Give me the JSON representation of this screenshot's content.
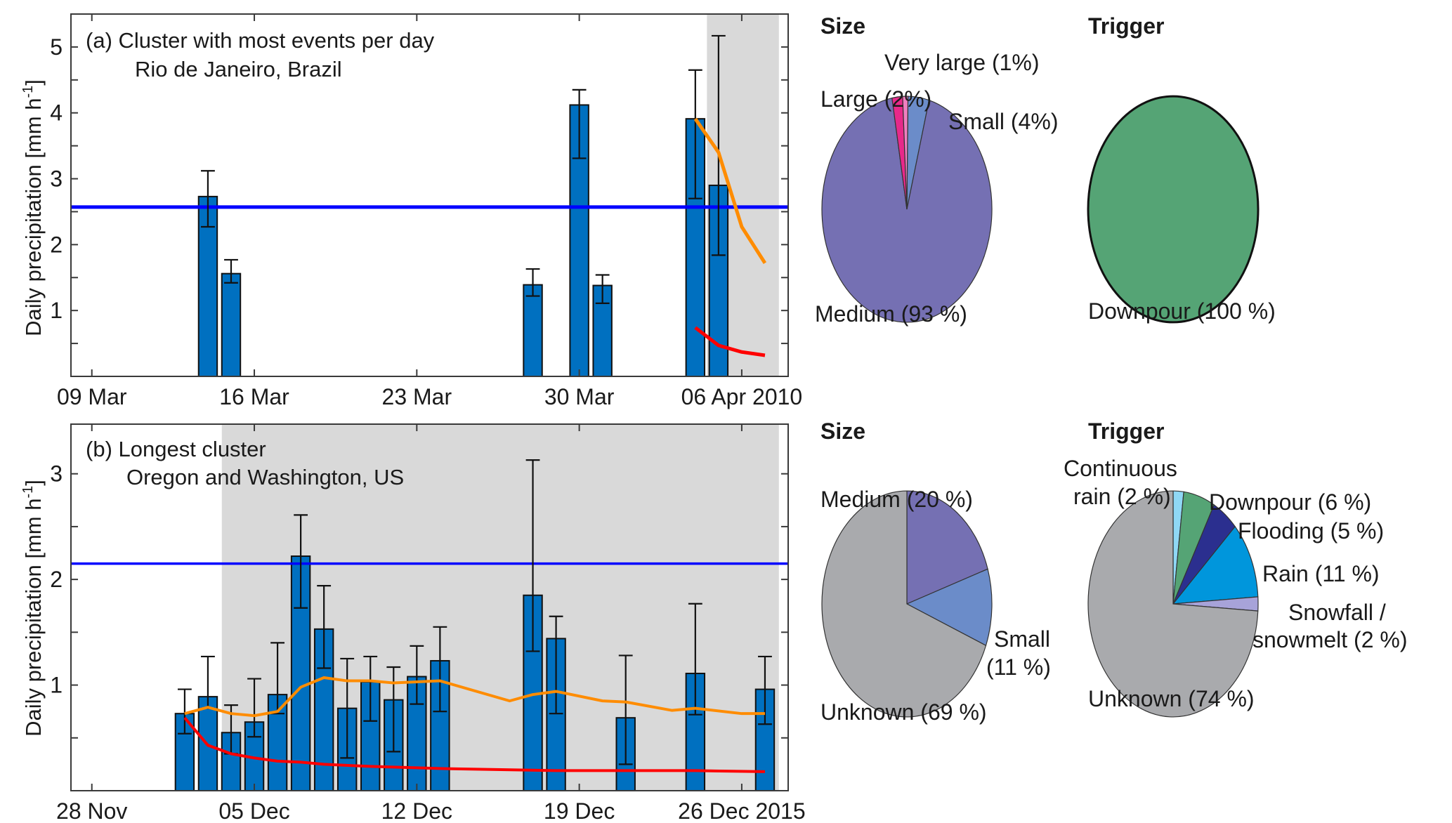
{
  "figure": {
    "ylabel": "Daily precipitation [mm h",
    "ylabel_sup": "-1",
    "ylabel_close": "]"
  },
  "chart_data": [
    {
      "type": "bar",
      "id": "panel-a",
      "title_line1": "(a) Cluster with most events per day",
      "title_line2": "Rio de Janeiro, Brazil",
      "ylabel": "Daily precipitation [mm h-1]",
      "ylim": [
        0,
        5.5
      ],
      "yticks_major": [
        1,
        2,
        3,
        4,
        5
      ],
      "yticks_minor_step": 0.5,
      "xlim_days": [
        -0.9,
        30.0
      ],
      "x_origin_date": "09 Mar 2010",
      "xticks": [
        {
          "day": 0,
          "label": "09 Mar"
        },
        {
          "day": 7,
          "label": "16 Mar"
        },
        {
          "day": 14,
          "label": "23 Mar"
        },
        {
          "day": 21,
          "label": "30 Mar"
        },
        {
          "day": 28,
          "label": "06 Apr 2010"
        }
      ],
      "shaded_range_days": [
        26.5,
        29.6
      ],
      "threshold": 2.57,
      "bars": [
        {
          "day": 5,
          "date": "14 Mar",
          "value": 2.73,
          "err_low": 2.27,
          "err_high": 3.12
        },
        {
          "day": 6,
          "date": "15 Mar",
          "value": 1.56,
          "err_low": 1.42,
          "err_high": 1.77
        },
        {
          "day": 19,
          "date": "28 Mar",
          "value": 1.39,
          "err_low": 1.22,
          "err_high": 1.63
        },
        {
          "day": 21,
          "date": "30 Mar",
          "value": 4.12,
          "err_low": 3.31,
          "err_high": 4.35
        },
        {
          "day": 22,
          "date": "31 Mar",
          "value": 1.38,
          "err_low": 1.11,
          "err_high": 1.54
        },
        {
          "day": 26,
          "date": "04 Apr",
          "value": 3.91,
          "err_low": 2.7,
          "err_high": 4.65
        },
        {
          "day": 27,
          "date": "05 Apr",
          "value": 2.9,
          "err_low": 1.84,
          "err_high": 5.17
        }
      ],
      "series": [
        {
          "name": "orange-curve",
          "color": "#ff8c00",
          "points": [
            [
              26,
              3.91
            ],
            [
              27,
              3.4
            ],
            [
              28,
              2.27
            ],
            [
              29,
              1.72
            ]
          ]
        },
        {
          "name": "red-curve",
          "color": "#ff0000",
          "points": [
            [
              26,
              0.74
            ],
            [
              27,
              0.47
            ],
            [
              28,
              0.37
            ],
            [
              29,
              0.32
            ]
          ]
        }
      ]
    },
    {
      "type": "bar",
      "id": "panel-b",
      "title_line1": "(b) Longest cluster",
      "title_line2": "Oregon and Washington, US",
      "ylabel": "Daily precipitation [mm h-1]",
      "ylim": [
        0,
        3.47
      ],
      "yticks_major": [
        1,
        2,
        3
      ],
      "yticks_minor_step": 0.5,
      "xlim_days": [
        -0.9,
        30.0
      ],
      "x_origin_date": "28 Nov 2015",
      "xticks": [
        {
          "day": 0,
          "label": "28 Nov"
        },
        {
          "day": 7,
          "label": "05 Dec"
        },
        {
          "day": 14,
          "label": "12 Dec"
        },
        {
          "day": 21,
          "label": "19 Dec"
        },
        {
          "day": 28,
          "label": "26 Dec 2015"
        }
      ],
      "shaded_range_days": [
        5.6,
        29.6
      ],
      "threshold": 2.15,
      "bars": [
        {
          "day": 4,
          "date": "02 Dec",
          "value": 0.73,
          "err_low": 0.54,
          "err_high": 0.96
        },
        {
          "day": 5,
          "date": "03 Dec",
          "value": 0.89,
          "err_low": 0.78,
          "err_high": 1.27
        },
        {
          "day": 6,
          "date": "04 Dec",
          "value": 0.55,
          "err_low": 0.35,
          "err_high": 0.81
        },
        {
          "day": 7,
          "date": "05 Dec",
          "value": 0.65,
          "err_low": 0.51,
          "err_high": 1.06
        },
        {
          "day": 8,
          "date": "06 Dec",
          "value": 0.91,
          "err_low": 0.73,
          "err_high": 1.4
        },
        {
          "day": 9,
          "date": "07 Dec",
          "value": 2.22,
          "err_low": 1.73,
          "err_high": 2.61
        },
        {
          "day": 10,
          "date": "08 Dec",
          "value": 1.53,
          "err_low": 1.16,
          "err_high": 1.94
        },
        {
          "day": 11,
          "date": "09 Dec",
          "value": 0.78,
          "err_low": 0.31,
          "err_high": 1.25
        },
        {
          "day": 12,
          "date": "10 Dec",
          "value": 1.03,
          "err_low": 0.66,
          "err_high": 1.27
        },
        {
          "day": 13,
          "date": "11 Dec",
          "value": 0.86,
          "err_low": 0.37,
          "err_high": 1.17
        },
        {
          "day": 14,
          "date": "12 Dec",
          "value": 1.08,
          "err_low": 0.82,
          "err_high": 1.37
        },
        {
          "day": 15,
          "date": "13 Dec",
          "value": 1.23,
          "err_low": 0.75,
          "err_high": 1.55
        },
        {
          "day": 19,
          "date": "17 Dec",
          "value": 1.85,
          "err_low": 1.32,
          "err_high": 3.13
        },
        {
          "day": 20,
          "date": "18 Dec",
          "value": 1.44,
          "err_low": 0.73,
          "err_high": 1.65
        },
        {
          "day": 23,
          "date": "21 Dec",
          "value": 0.69,
          "err_low": 0.25,
          "err_high": 1.28
        },
        {
          "day": 26,
          "date": "24 Dec",
          "value": 1.11,
          "err_low": 0.72,
          "err_high": 1.77
        },
        {
          "day": 29,
          "date": "27 Dec",
          "value": 0.96,
          "err_low": 0.63,
          "err_high": 1.27
        }
      ],
      "series": [
        {
          "name": "orange-curve",
          "color": "#ff8c00",
          "points": [
            [
              4,
              0.73
            ],
            [
              5,
              0.79
            ],
            [
              6,
              0.73
            ],
            [
              7,
              0.71
            ],
            [
              8,
              0.75
            ],
            [
              9,
              0.98
            ],
            [
              10,
              1.07
            ],
            [
              11,
              1.04
            ],
            [
              12,
              1.04
            ],
            [
              13,
              1.02
            ],
            [
              14,
              1.03
            ],
            [
              15,
              1.04
            ],
            [
              18,
              0.85
            ],
            [
              19,
              0.91
            ],
            [
              20,
              0.94
            ],
            [
              22,
              0.85
            ],
            [
              23,
              0.84
            ],
            [
              25,
              0.76
            ],
            [
              26,
              0.78
            ],
            [
              28,
              0.73
            ],
            [
              29,
              0.73
            ]
          ]
        },
        {
          "name": "red-curve",
          "color": "#ff0000",
          "points": [
            [
              4,
              0.69
            ],
            [
              5,
              0.43
            ],
            [
              6,
              0.35
            ],
            [
              7,
              0.31
            ],
            [
              8,
              0.28
            ],
            [
              9,
              0.27
            ],
            [
              10,
              0.25
            ],
            [
              12,
              0.23
            ],
            [
              15,
              0.21
            ],
            [
              20,
              0.19
            ],
            [
              26,
              0.19
            ],
            [
              29,
              0.18
            ]
          ]
        }
      ]
    },
    {
      "type": "pie",
      "id": "pie-a-size",
      "title": "Size",
      "slices": [
        {
          "label": "Medium (93 %)",
          "value": 93,
          "color": "#7570b3"
        },
        {
          "label": "Large  (2%)",
          "value": 2,
          "color": "#e7298a"
        },
        {
          "label": "Very large  (1%)",
          "value": 1,
          "color": "#f07fc0"
        },
        {
          "label": "Small  (4%)",
          "value": 4,
          "color": "#6b8cc9"
        }
      ]
    },
    {
      "type": "pie",
      "id": "pie-a-trigger",
      "title": "Trigger",
      "slices": [
        {
          "label": "Downpour  (100 %)",
          "value": 100,
          "color": "#55a475"
        }
      ]
    },
    {
      "type": "pie",
      "id": "pie-b-size",
      "title": "Size",
      "slices": [
        {
          "label": "Medium (20 %)",
          "value": 20,
          "color": "#7570b3"
        },
        {
          "label": "Small (11 %)",
          "value": 11,
          "color": "#6b8cc9"
        },
        {
          "label": "Unknown (69 %)",
          "value": 69,
          "color": "#a9aaad"
        }
      ]
    },
    {
      "type": "pie",
      "id": "pie-b-trigger",
      "title": "Trigger",
      "slices": [
        {
          "label": "Continuous rain (2 %)",
          "value": 2,
          "color": "#8fd8f5"
        },
        {
          "label": "Downpour  (6 %)",
          "value": 6,
          "color": "#55a475"
        },
        {
          "label": "Flooding  (5 %)",
          "value": 5,
          "color": "#2b2f8f"
        },
        {
          "label": "Rain (11 %)",
          "value": 11,
          "color": "#0096dc"
        },
        {
          "label": "Snowfall / snowmelt  (2 %)",
          "value": 2,
          "color": "#a7a3d9"
        },
        {
          "label": "Unknown (74 %)",
          "value": 74,
          "color": "#a9aaad"
        }
      ]
    }
  ],
  "pie_labels": {
    "a_size": {
      "very_large": "Very large  (1%)",
      "large": "Large  (2%)",
      "small": "Small  (4%)",
      "medium": "Medium (93 %)"
    },
    "a_trigger": {
      "downpour": "Downpour  (100 %)"
    },
    "b_size": {
      "medium": "Medium (20 %)",
      "small_1": "Small",
      "small_2": "(11 %)",
      "unknown": "Unknown (69 %)"
    },
    "b_trigger": {
      "continuous_1": "Continuous",
      "continuous_2": "rain (2 %)",
      "downpour": "Downpour  (6 %)",
      "flooding": "Flooding  (5 %)",
      "rain": "Rain (11 %)",
      "snow_1": "Snowfall /",
      "snow_2": "snowmelt  (2 %)",
      "unknown": "Unknown (74 %)"
    }
  },
  "colors": {
    "bar_fill": "#0070c0",
    "threshold_line": "#0000ff",
    "shade": "#d9d9d9"
  }
}
